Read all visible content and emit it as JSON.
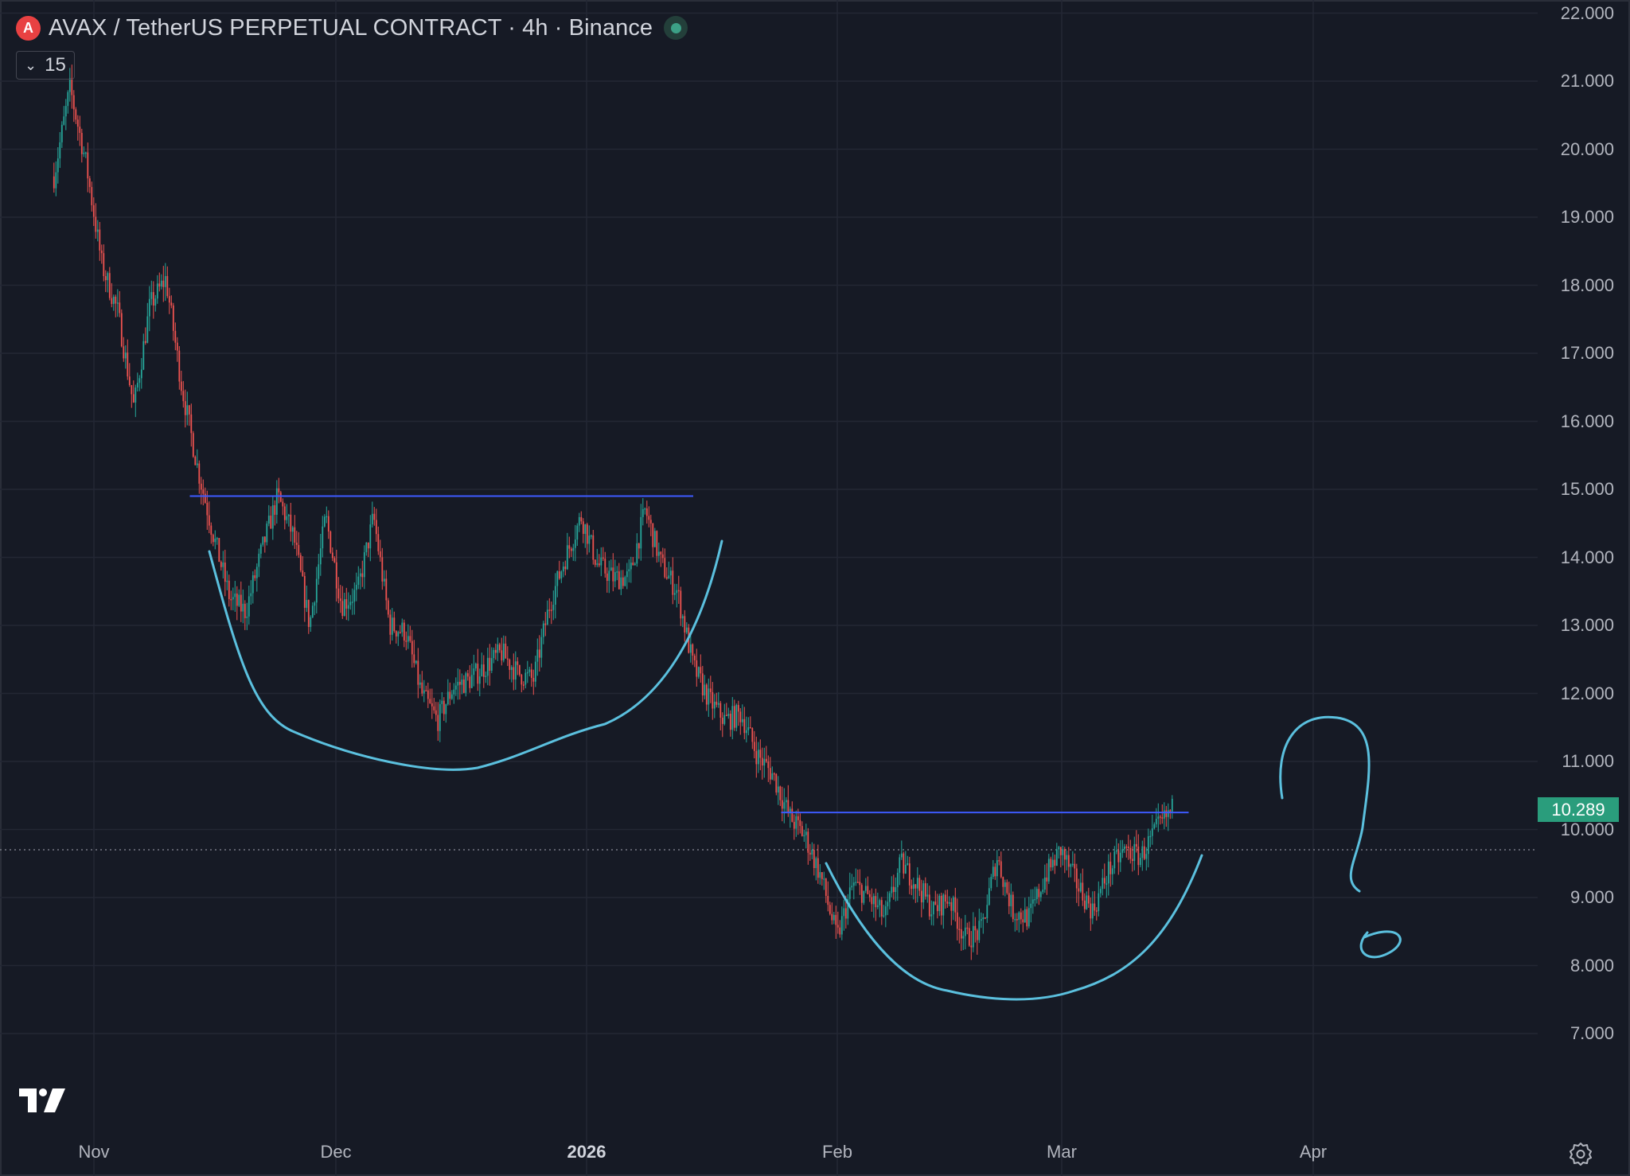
{
  "legend": {
    "symbol_badge": "A",
    "title": "AVAX / TetherUS PERPETUAL CONTRACT · 4h · Binance",
    "status_color": "#3ca086"
  },
  "indicator_toggle": {
    "count": "15",
    "icon": "chevron-down-icon"
  },
  "price_axis": [
    "22.000",
    "21.000",
    "20.000",
    "19.000",
    "18.000",
    "17.000",
    "16.000",
    "15.000",
    "14.000",
    "13.000",
    "12.000",
    "11.000",
    "10.000",
    "9.000",
    "8.000",
    "7.000"
  ],
  "last_price": "10.289",
  "time_axis": [
    {
      "label": "Nov",
      "bold": false
    },
    {
      "label": "Dec",
      "bold": false
    },
    {
      "label": "2026",
      "bold": true
    },
    {
      "label": "Feb",
      "bold": false
    },
    {
      "label": "Mar",
      "bold": false
    },
    {
      "label": "Apr",
      "bold": false
    }
  ],
  "colors": {
    "background": "#161a25",
    "up": "#26a69a",
    "down": "#ef5350",
    "drawing": "#5bc0de",
    "hline": "#3d5afe"
  },
  "chart_data": {
    "type": "candlestick",
    "title": "AVAX / TetherUS PERPETUAL CONTRACT · 4h · Binance",
    "interval": "4h",
    "ylim": [
      6.5,
      22.6
    ],
    "y_ticks": [
      22,
      21,
      20,
      19,
      18,
      17,
      16,
      15,
      14,
      13,
      12,
      11,
      10,
      9,
      8,
      7
    ],
    "x_ticks": [
      "Nov",
      "Dec",
      "2026",
      "Feb",
      "Mar",
      "Apr"
    ],
    "last_price": 10.289,
    "grid": true,
    "price_path": [
      {
        "date": "2025-10-26",
        "price": 19.6
      },
      {
        "date": "2025-10-28",
        "price": 20.9
      },
      {
        "date": "2025-10-30",
        "price": 19.8
      },
      {
        "date": "2025-11-01",
        "price": 18.3
      },
      {
        "date": "2025-11-03",
        "price": 17.6
      },
      {
        "date": "2025-11-05",
        "price": 16.2
      },
      {
        "date": "2025-11-07",
        "price": 17.7
      },
      {
        "date": "2025-11-09",
        "price": 18.1
      },
      {
        "date": "2025-11-11",
        "price": 16.5
      },
      {
        "date": "2025-11-13",
        "price": 15.3
      },
      {
        "date": "2025-11-15",
        "price": 14.3
      },
      {
        "date": "2025-11-17",
        "price": 13.4
      },
      {
        "date": "2025-11-19",
        "price": 13.2
      },
      {
        "date": "2025-11-21",
        "price": 14.1
      },
      {
        "date": "2025-11-23",
        "price": 14.9
      },
      {
        "date": "2025-11-25",
        "price": 14.3
      },
      {
        "date": "2025-11-27",
        "price": 13.0
      },
      {
        "date": "2025-11-29",
        "price": 14.6
      },
      {
        "date": "2025-12-01",
        "price": 13.3
      },
      {
        "date": "2025-12-03",
        "price": 13.5
      },
      {
        "date": "2025-12-05",
        "price": 14.6
      },
      {
        "date": "2025-12-07",
        "price": 13.0
      },
      {
        "date": "2025-12-09",
        "price": 12.9
      },
      {
        "date": "2025-12-11",
        "price": 12.0
      },
      {
        "date": "2025-12-13",
        "price": 11.6
      },
      {
        "date": "2025-12-15",
        "price": 12.1
      },
      {
        "date": "2025-12-17",
        "price": 12.2
      },
      {
        "date": "2025-12-19",
        "price": 12.4
      },
      {
        "date": "2025-12-21",
        "price": 12.6
      },
      {
        "date": "2025-12-23",
        "price": 12.3
      },
      {
        "date": "2025-12-25",
        "price": 12.2
      },
      {
        "date": "2025-12-27",
        "price": 13.3
      },
      {
        "date": "2025-12-29",
        "price": 14.0
      },
      {
        "date": "2025-12-31",
        "price": 14.6
      },
      {
        "date": "2026-01-02",
        "price": 13.9
      },
      {
        "date": "2026-01-04",
        "price": 13.7
      },
      {
        "date": "2026-01-06",
        "price": 13.7
      },
      {
        "date": "2026-01-08",
        "price": 14.7
      },
      {
        "date": "2026-01-10",
        "price": 13.9
      },
      {
        "date": "2026-01-12",
        "price": 13.5
      },
      {
        "date": "2026-01-14",
        "price": 12.4
      },
      {
        "date": "2026-01-16",
        "price": 11.9
      },
      {
        "date": "2026-01-18",
        "price": 11.6
      },
      {
        "date": "2026-01-20",
        "price": 11.7
      },
      {
        "date": "2026-01-22",
        "price": 11.1
      },
      {
        "date": "2026-01-24",
        "price": 10.8
      },
      {
        "date": "2026-01-26",
        "price": 10.2
      },
      {
        "date": "2026-01-28",
        "price": 9.9
      },
      {
        "date": "2026-01-30",
        "price": 9.3
      },
      {
        "date": "2026-02-01",
        "price": 8.4
      },
      {
        "date": "2026-02-03",
        "price": 9.2
      },
      {
        "date": "2026-02-05",
        "price": 9.0
      },
      {
        "date": "2026-02-07",
        "price": 8.7
      },
      {
        "date": "2026-02-09",
        "price": 9.5
      },
      {
        "date": "2026-02-11",
        "price": 9.2
      },
      {
        "date": "2026-02-13",
        "price": 8.8
      },
      {
        "date": "2026-02-15",
        "price": 9.0
      },
      {
        "date": "2026-02-17",
        "price": 8.4
      },
      {
        "date": "2026-02-19",
        "price": 8.5
      },
      {
        "date": "2026-02-21",
        "price": 9.6
      },
      {
        "date": "2026-02-23",
        "price": 8.8
      },
      {
        "date": "2026-02-25",
        "price": 8.7
      },
      {
        "date": "2026-02-27",
        "price": 9.3
      },
      {
        "date": "2026-03-01",
        "price": 9.7
      },
      {
        "date": "2026-03-03",
        "price": 9.2
      },
      {
        "date": "2026-03-05",
        "price": 8.8
      },
      {
        "date": "2026-03-07",
        "price": 9.4
      },
      {
        "date": "2026-03-09",
        "price": 9.7
      },
      {
        "date": "2026-03-11",
        "price": 9.6
      },
      {
        "date": "2026-03-13",
        "price": 10.0
      },
      {
        "date": "2026-03-15",
        "price": 10.3
      }
    ],
    "annotations": [
      {
        "type": "horizontal_line",
        "price": 14.9,
        "from": "2025-11-12",
        "to": "2026-01-14"
      },
      {
        "type": "horizontal_line",
        "price": 10.25,
        "from": "2026-01-25",
        "to": "2026-03-17"
      },
      {
        "type": "freehand",
        "shape": "rounded-bottom"
      },
      {
        "type": "freehand",
        "shape": "rounded-bottom"
      },
      {
        "type": "freehand",
        "shape": "question-mark"
      }
    ]
  }
}
